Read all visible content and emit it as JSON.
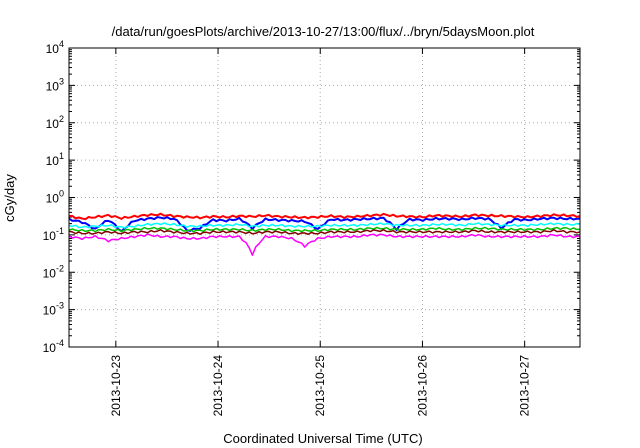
{
  "chart_data": {
    "type": "line",
    "title": "/data/run/goesPlots/archive/2013-10-27/13:00/flux/../bryn/5daysMoon.plot",
    "xlabel": "Coordinated Universal Time (UTC)",
    "ylabel": "cGy/day",
    "y_scale": "log",
    "ylim": [
      0.0001,
      10000
    ],
    "xlim": [
      "2013-10-22 13:00",
      "2013-10-27 13:00"
    ],
    "x_ticks": [
      "2013-10-23",
      "2013-10-24",
      "2013-10-25",
      "2013-10-26",
      "2013-10-27"
    ],
    "y_ticks": [
      {
        "base": "10",
        "exp": "-4"
      },
      {
        "base": "10",
        "exp": "-3"
      },
      {
        "base": "10",
        "exp": "-2"
      },
      {
        "base": "10",
        "exp": "-1"
      },
      {
        "base": "10",
        "exp": "0"
      },
      {
        "base": "10",
        "exp": "1"
      },
      {
        "base": "10",
        "exp": "2"
      },
      {
        "base": "10",
        "exp": "3"
      },
      {
        "base": "10",
        "exp": "4"
      }
    ],
    "grid": true,
    "series": [
      {
        "color": "#ff0000",
        "baseline": 0.3,
        "values": [
          0.32,
          0.27,
          0.3,
          0.33,
          0.28,
          0.31,
          0.34,
          0.35,
          0.32,
          0.3,
          0.29,
          0.31,
          0.3,
          0.32,
          0.31,
          0.33,
          0.31,
          0.3,
          0.29,
          0.3,
          0.32,
          0.3,
          0.31,
          0.33,
          0.35,
          0.32,
          0.31,
          0.3,
          0.33,
          0.32,
          0.31,
          0.34,
          0.33,
          0.32,
          0.31,
          0.3,
          0.32,
          0.34,
          0.33,
          0.32
        ]
      },
      {
        "color": "#0000ff",
        "baseline": 0.25,
        "values": [
          0.26,
          0.22,
          0.14,
          0.25,
          0.12,
          0.24,
          0.27,
          0.29,
          0.27,
          0.13,
          0.15,
          0.25,
          0.24,
          0.27,
          0.15,
          0.26,
          0.25,
          0.24,
          0.23,
          0.14,
          0.26,
          0.25,
          0.26,
          0.27,
          0.28,
          0.14,
          0.26,
          0.25,
          0.27,
          0.27,
          0.26,
          0.28,
          0.27,
          0.15,
          0.26,
          0.25,
          0.27,
          0.28,
          0.27,
          0.27
        ]
      },
      {
        "color": "#00ffff",
        "baseline": 0.18,
        "values": [
          0.18,
          0.16,
          0.17,
          0.18,
          0.16,
          0.17,
          0.19,
          0.2,
          0.19,
          0.17,
          0.17,
          0.18,
          0.18,
          0.19,
          0.17,
          0.18,
          0.18,
          0.17,
          0.17,
          0.17,
          0.18,
          0.18,
          0.18,
          0.19,
          0.2,
          0.18,
          0.18,
          0.18,
          0.19,
          0.19,
          0.18,
          0.2,
          0.19,
          0.18,
          0.18,
          0.18,
          0.19,
          0.2,
          0.19,
          0.19
        ]
      },
      {
        "color": "#00c000",
        "baseline": 0.14,
        "values": [
          0.14,
          0.13,
          0.13,
          0.14,
          0.13,
          0.14,
          0.15,
          0.15,
          0.14,
          0.13,
          0.13,
          0.14,
          0.14,
          0.14,
          0.13,
          0.14,
          0.14,
          0.13,
          0.13,
          0.13,
          0.14,
          0.14,
          0.14,
          0.15,
          0.15,
          0.14,
          0.14,
          0.14,
          0.15,
          0.14,
          0.14,
          0.15,
          0.15,
          0.14,
          0.14,
          0.14,
          0.14,
          0.15,
          0.15,
          0.14
        ]
      },
      {
        "color": "#800000",
        "baseline": 0.12,
        "values": [
          0.12,
          0.11,
          0.11,
          0.12,
          0.11,
          0.12,
          0.12,
          0.13,
          0.12,
          0.11,
          0.11,
          0.12,
          0.12,
          0.12,
          0.11,
          0.12,
          0.12,
          0.11,
          0.11,
          0.11,
          0.12,
          0.12,
          0.12,
          0.13,
          0.13,
          0.12,
          0.12,
          0.12,
          0.12,
          0.12,
          0.12,
          0.13,
          0.12,
          0.12,
          0.12,
          0.12,
          0.12,
          0.13,
          0.12,
          0.12
        ]
      },
      {
        "color": "#ff00ff",
        "baseline": 0.09,
        "values": [
          0.09,
          0.08,
          0.09,
          0.07,
          0.08,
          0.09,
          0.1,
          0.09,
          0.09,
          0.08,
          0.08,
          0.09,
          0.09,
          0.09,
          0.03,
          0.09,
          0.09,
          0.08,
          0.05,
          0.08,
          0.09,
          0.09,
          0.09,
          0.1,
          0.1,
          0.09,
          0.09,
          0.09,
          0.09,
          0.09,
          0.09,
          0.1,
          0.09,
          0.09,
          0.09,
          0.09,
          0.09,
          0.1,
          0.09,
          0.09
        ]
      }
    ]
  }
}
